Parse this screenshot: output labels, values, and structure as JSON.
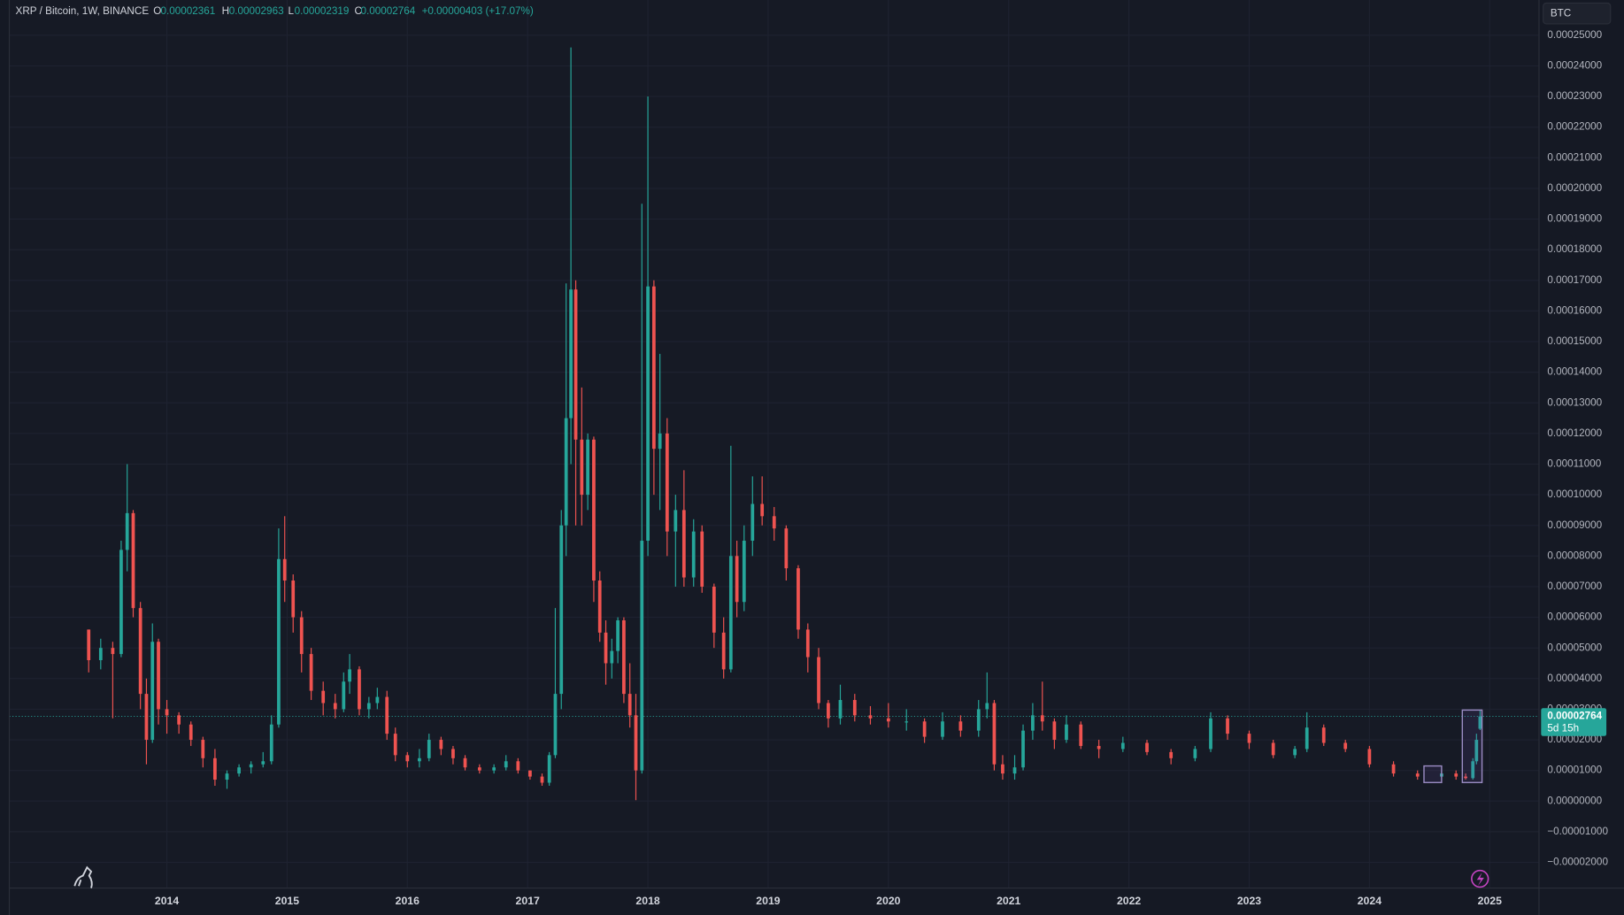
{
  "header": {
    "symbol": "XRP / Bitcoin, 1W, BINANCE",
    "ohlc_labels": [
      "O",
      "H",
      "L",
      "C"
    ],
    "change": "+0.00000403 (+17.07%)",
    "currency": "BTC",
    "countdown": "5d 15h"
  },
  "chart_data": {
    "type": "candlestick",
    "up_color": "#26a69a",
    "down_color": "#ef5350",
    "grid": true,
    "xlim": [
      2012.69,
      2025.41
    ],
    "xticks": [
      2014,
      2015,
      2016,
      2017,
      2018,
      2019,
      2020,
      2021,
      2022,
      2023,
      2024,
      2025
    ],
    "ylim": [
      -2.84e-05,
      0.0002615
    ],
    "yticks": [
      {
        "value": 0.00025,
        "label": "0.00025000"
      },
      {
        "value": 0.00024,
        "label": "0.00024000"
      },
      {
        "value": 0.00023,
        "label": "0.00023000"
      },
      {
        "value": 0.00022,
        "label": "0.00022000"
      },
      {
        "value": 0.00021,
        "label": "0.00021000"
      },
      {
        "value": 0.0002,
        "label": "0.00020000"
      },
      {
        "value": 0.00019,
        "label": "0.00019000"
      },
      {
        "value": 0.00018,
        "label": "0.00018000"
      },
      {
        "value": 0.00017,
        "label": "0.00017000"
      },
      {
        "value": 0.00016,
        "label": "0.00016000"
      },
      {
        "value": 0.00015,
        "label": "0.00015000"
      },
      {
        "value": 0.00014,
        "label": "0.00014000"
      },
      {
        "value": 0.00013,
        "label": "0.00013000"
      },
      {
        "value": 0.00012,
        "label": "0.00012000"
      },
      {
        "value": 0.00011,
        "label": "0.00011000"
      },
      {
        "value": 0.0001,
        "label": "0.00010000"
      },
      {
        "value": 9e-05,
        "label": "0.00009000"
      },
      {
        "value": 8e-05,
        "label": "0.00008000"
      },
      {
        "value": 7e-05,
        "label": "0.00007000"
      },
      {
        "value": 6e-05,
        "label": "0.00006000"
      },
      {
        "value": 5e-05,
        "label": "0.00005000"
      },
      {
        "value": 4e-05,
        "label": "0.00004000"
      },
      {
        "value": 3e-05,
        "label": "0.00003000"
      },
      {
        "value": 2e-05,
        "label": "0.00002000"
      },
      {
        "value": 1e-05,
        "label": "0.00001000"
      },
      {
        "value": 0,
        "label": "0.00000000"
      },
      {
        "value": -1e-05,
        "label": "−0.00001000"
      },
      {
        "value": -2e-05,
        "label": "−0.00002000"
      }
    ],
    "x": [
      2013.35,
      2013.45,
      2013.55,
      2013.62,
      2013.67,
      2013.72,
      2013.78,
      2013.83,
      2013.88,
      2013.93,
      2014.0,
      2014.1,
      2014.2,
      2014.3,
      2014.4,
      2014.5,
      2014.6,
      2014.7,
      2014.8,
      2014.87,
      2014.93,
      2014.98,
      2015.05,
      2015.12,
      2015.2,
      2015.3,
      2015.4,
      2015.47,
      2015.52,
      2015.6,
      2015.68,
      2015.75,
      2015.83,
      2015.9,
      2016.0,
      2016.1,
      2016.18,
      2016.28,
      2016.38,
      2016.48,
      2016.6,
      2016.72,
      2016.82,
      2016.92,
      2017.02,
      2017.12,
      2017.18,
      2017.23,
      2017.28,
      2017.32,
      2017.36,
      2017.4,
      2017.45,
      2017.5,
      2017.55,
      2017.6,
      2017.65,
      2017.7,
      2017.75,
      2017.8,
      2017.85,
      2017.9,
      2017.95,
      2018.0,
      2018.05,
      2018.1,
      2018.16,
      2018.23,
      2018.3,
      2018.38,
      2018.45,
      2018.55,
      2018.63,
      2018.69,
      2018.74,
      2018.8,
      2018.87,
      2018.95,
      2019.05,
      2019.15,
      2019.25,
      2019.33,
      2019.42,
      2019.5,
      2019.6,
      2019.72,
      2019.85,
      2020.0,
      2020.15,
      2020.3,
      2020.45,
      2020.6,
      2020.75,
      2020.82,
      2020.88,
      2020.95,
      2021.05,
      2021.12,
      2021.2,
      2021.28,
      2021.38,
      2021.48,
      2021.6,
      2021.75,
      2021.95,
      2022.15,
      2022.35,
      2022.55,
      2022.68,
      2022.82,
      2023.0,
      2023.2,
      2023.38,
      2023.48,
      2023.62,
      2023.8,
      2024.0,
      2024.2,
      2024.4,
      2024.6,
      2024.72,
      2024.8,
      2024.86,
      2024.89,
      2024.92
    ],
    "open": [
      5.6e-05,
      4.6e-05,
      5e-05,
      4.8e-05,
      8.2e-05,
      9.4e-05,
      6.3e-05,
      3.5e-05,
      2e-05,
      5.2e-05,
      3e-05,
      2.8e-05,
      2.5e-05,
      2e-05,
      1.4e-05,
      7e-06,
      9e-06,
      1.1e-05,
      1.2e-05,
      1.3e-05,
      2.5e-05,
      7.9e-05,
      7.2e-05,
      6e-05,
      4.8e-05,
      3.6e-05,
      3.2e-05,
      3e-05,
      3.9e-05,
      4.3e-05,
      3e-05,
      3.2e-05,
      3.4e-05,
      2.2e-05,
      1.5e-05,
      1.3e-05,
      1.4e-05,
      2e-05,
      1.7e-05,
      1.4e-05,
      1.1e-05,
      1e-05,
      1.1e-05,
      1.3e-05,
      1e-05,
      8e-06,
      6e-06,
      1.5e-05,
      3.5e-05,
      9e-05,
      0.000125,
      0.000167,
      0.000118,
      0.0001,
      0.000118,
      7.2e-05,
      5.5e-05,
      4.5e-05,
      4.9e-05,
      5.9e-05,
      3.5e-05,
      2.8e-05,
      1e-05,
      8.5e-05,
      0.000168,
      0.000115,
      0.00012,
      8.8e-05,
      9.5e-05,
      7.3e-05,
      8.8e-05,
      7e-05,
      5.5e-05,
      4.3e-05,
      8e-05,
      6.5e-05,
      8.5e-05,
      9.7e-05,
      9.3e-05,
      8.9e-05,
      7.6e-05,
      5.6e-05,
      4.7e-05,
      3.2e-05,
      2.7e-05,
      3.3e-05,
      2.8e-05,
      2.7e-05,
      2.6e-05,
      2.6e-05,
      2.1e-05,
      2.6e-05,
      2.3e-05,
      3e-05,
      3.2e-05,
      1.2e-05,
      9e-06,
      1.1e-05,
      2.3e-05,
      2.8e-05,
      2.6e-05,
      2e-05,
      2.5e-05,
      1.8e-05,
      1.7e-05,
      1.9e-05,
      1.6e-05,
      1.4e-05,
      1.7e-05,
      2.7e-05,
      2.2e-05,
      1.9e-05,
      1.5e-05,
      1.7e-05,
      2.4e-05,
      1.9e-05,
      1.7e-05,
      1.2e-05,
      9e-06,
      8e-06,
      9e-06,
      8e-06,
      7.5e-06,
      1.3e-05,
      2.361e-05
    ],
    "high": [
      5.6e-05,
      5.3e-05,
      5.2e-05,
      8.5e-05,
      0.00011,
      9.5e-05,
      6.5e-05,
      4e-05,
      5.8e-05,
      5.3e-05,
      3.3e-05,
      2.9e-05,
      2.6e-05,
      2.1e-05,
      1.7e-05,
      1e-05,
      1.2e-05,
      1.3e-05,
      1.6e-05,
      2.8e-05,
      8.9e-05,
      9.3e-05,
      7.4e-05,
      6.2e-05,
      5e-05,
      3.9e-05,
      3.5e-05,
      4.2e-05,
      4.8e-05,
      4.4e-05,
      3.4e-05,
      3.7e-05,
      3.6e-05,
      2.4e-05,
      1.6e-05,
      1.7e-05,
      2.2e-05,
      2.1e-05,
      1.8e-05,
      1.5e-05,
      1.2e-05,
      1.2e-05,
      1.5e-05,
      1.4e-05,
      1e-05,
      9e-06,
      1.6e-05,
      6.3e-05,
      9.5e-05,
      0.000169,
      0.000246,
      0.00017,
      0.000135,
      0.00012,
      0.000119,
      7.5e-05,
      5.9e-05,
      5.3e-05,
      6e-05,
      6e-05,
      4.5e-05,
      3.5e-05,
      0.000195,
      0.00023,
      0.00017,
      0.000146,
      0.000125,
      0.0001,
      0.000108,
      9.2e-05,
      9e-05,
      7.1e-05,
      6e-05,
      0.000116,
      8.5e-05,
      9e-05,
      0.000106,
      0.000106,
      9.6e-05,
      9e-05,
      7.7e-05,
      5.8e-05,
      5e-05,
      3.3e-05,
      3.8e-05,
      3.5e-05,
      3.1e-05,
      3.2e-05,
      3e-05,
      2.7e-05,
      2.9e-05,
      2.8e-05,
      3.3e-05,
      4.2e-05,
      3.3e-05,
      1.5e-05,
      1.5e-05,
      2.5e-05,
      3.2e-05,
      3.9e-05,
      2.7e-05,
      2.8e-05,
      2.6e-05,
      2e-05,
      2.1e-05,
      2e-05,
      1.7e-05,
      1.8e-05,
      2.9e-05,
      2.8e-05,
      2.3e-05,
      2e-05,
      1.8e-05,
      2.9e-05,
      2.5e-05,
      2e-05,
      1.8e-05,
      1.3e-05,
      1e-05,
      1e-05,
      1e-05,
      9e-06,
      1.4e-05,
      2.2e-05,
      2.963e-05
    ],
    "low": [
      4.2e-05,
      4.3e-05,
      2.7e-05,
      4.7e-05,
      7.5e-05,
      6e-05,
      3e-05,
      1.2e-05,
      1.9e-05,
      2.5e-05,
      2.2e-05,
      2.2e-05,
      1.8e-05,
      1.1e-05,
      5e-06,
      4e-06,
      8e-06,
      9e-06,
      1.1e-05,
      1.2e-05,
      2.4e-05,
      6.5e-05,
      5.5e-05,
      4.2e-05,
      3.3e-05,
      2.8e-05,
      2.7e-05,
      2.9e-05,
      3.5e-05,
      2.8e-05,
      2.7e-05,
      3e-05,
      2e-05,
      1.3e-05,
      1.1e-05,
      1.1e-05,
      1.3e-05,
      1.5e-05,
      1.2e-05,
      1e-05,
      9e-06,
      9e-06,
      1e-05,
      9e-06,
      7e-06,
      5e-06,
      5e-06,
      1.4e-05,
      3e-05,
      8e-05,
      0.00011,
      9e-05,
      9e-05,
      9.5e-05,
      6.5e-05,
      5.2e-05,
      3.8e-05,
      4e-05,
      4.5e-05,
      3.2e-05,
      2.4e-05,
      3e-07,
      9e-06,
      8e-05,
      0.0001,
      9.5e-05,
      8e-05,
      7e-05,
      7e-05,
      7e-05,
      6.8e-05,
      5e-05,
      4e-05,
      4.2e-05,
      6e-05,
      6.2e-05,
      8e-05,
      9e-05,
      8.5e-05,
      7.2e-05,
      5.3e-05,
      4.2e-05,
      3e-05,
      2.4e-05,
      2.5e-05,
      2.6e-05,
      2.5e-05,
      2.4e-05,
      2.3e-05,
      1.9e-05,
      2e-05,
      2.1e-05,
      2.1e-05,
      2.7e-05,
      1e-05,
      7e-06,
      7e-06,
      1e-05,
      2e-05,
      2.3e-05,
      1.7e-05,
      1.9e-05,
      1.7e-05,
      1.4e-05,
      1.6e-05,
      1.5e-05,
      1.2e-05,
      1.3e-05,
      1.6e-05,
      2e-05,
      1.7e-05,
      1.4e-05,
      1.4e-05,
      1.6e-05,
      1.8e-05,
      1.6e-05,
      1.1e-05,
      8e-06,
      7e-06,
      7.5e-06,
      7e-06,
      7e-06,
      7e-06,
      1.2e-05,
      2.319e-05
    ],
    "close": [
      4.6e-05,
      5e-05,
      4.8e-05,
      8.2e-05,
      9.4e-05,
      6.3e-05,
      3.5e-05,
      2e-05,
      5.2e-05,
      3e-05,
      2.8e-05,
      2.5e-05,
      2e-05,
      1.4e-05,
      7e-06,
      9e-06,
      1.1e-05,
      1.2e-05,
      1.3e-05,
      2.5e-05,
      7.9e-05,
      7.2e-05,
      6e-05,
      4.8e-05,
      3.6e-05,
      3.2e-05,
      3e-05,
      3.9e-05,
      4.3e-05,
      3e-05,
      3.2e-05,
      3.4e-05,
      2.2e-05,
      1.5e-05,
      1.3e-05,
      1.4e-05,
      2e-05,
      1.7e-05,
      1.4e-05,
      1.1e-05,
      1e-05,
      1.1e-05,
      1.3e-05,
      1e-05,
      8e-06,
      6e-06,
      1.5e-05,
      3.5e-05,
      9e-05,
      0.000125,
      0.000167,
      0.000118,
      0.0001,
      0.000118,
      7.2e-05,
      5.5e-05,
      4.5e-05,
      4.9e-05,
      5.9e-05,
      3.5e-05,
      2.8e-05,
      1e-05,
      8.5e-05,
      0.000168,
      0.000115,
      0.00012,
      8.8e-05,
      9.5e-05,
      7.3e-05,
      8.8e-05,
      7e-05,
      5.5e-05,
      4.3e-05,
      8e-05,
      6.5e-05,
      8.5e-05,
      9.7e-05,
      9.3e-05,
      8.9e-05,
      7.6e-05,
      5.6e-05,
      4.7e-05,
      3.2e-05,
      2.7e-05,
      3.3e-05,
      2.8e-05,
      2.7e-05,
      2.6e-05,
      2.6e-05,
      2.1e-05,
      2.6e-05,
      2.3e-05,
      3e-05,
      3.2e-05,
      1.2e-05,
      9e-06,
      1.1e-05,
      2.3e-05,
      2.8e-05,
      2.6e-05,
      2e-05,
      2.5e-05,
      1.8e-05,
      1.7e-05,
      1.9e-05,
      1.6e-05,
      1.4e-05,
      1.7e-05,
      2.7e-05,
      2.2e-05,
      1.9e-05,
      1.5e-05,
      1.7e-05,
      2.4e-05,
      1.9e-05,
      1.7e-05,
      1.2e-05,
      9e-06,
      8e-06,
      9e-06,
      8e-06,
      7.5e-06,
      1.3e-05,
      2e-05,
      2.764e-05
    ]
  }
}
